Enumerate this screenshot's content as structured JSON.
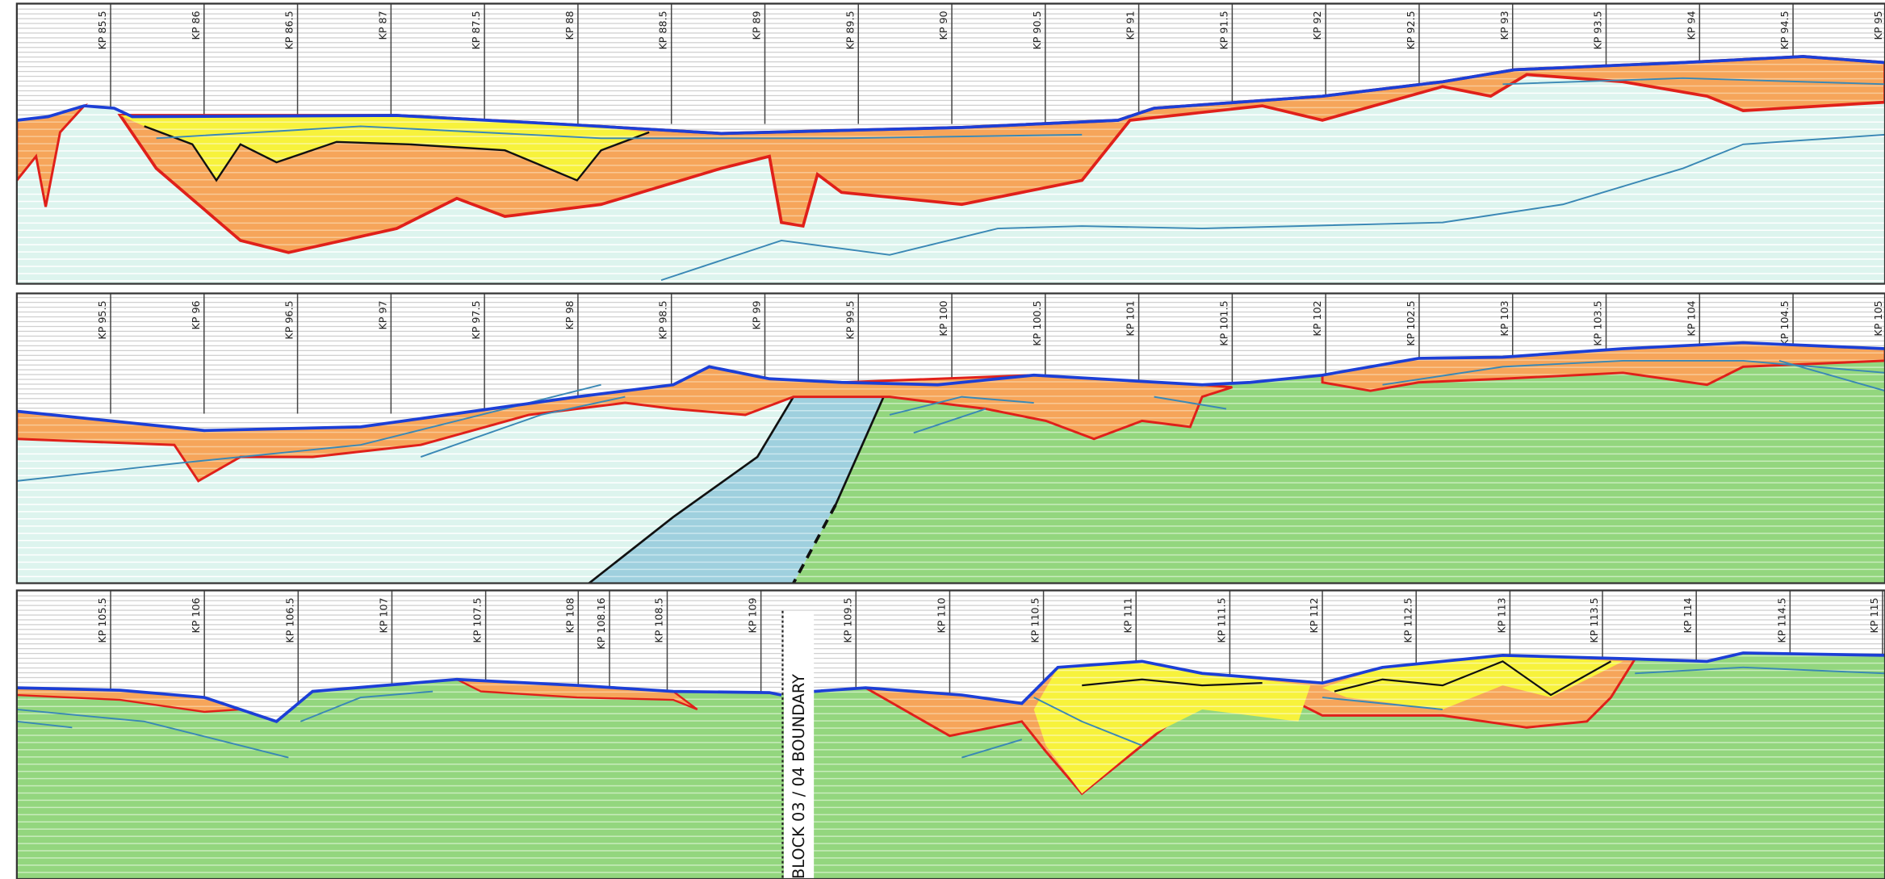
{
  "panels": [
    {
      "kp_labels": [
        "KP 85.5",
        "KP 86",
        "KP 86.5",
        "KP 87",
        "KP 87.5",
        "KP 88",
        "KP 88.5",
        "KP 89",
        "KP 89.5",
        "KP 90",
        "KP 90.5",
        "KP 91",
        "KP 91.5",
        "KP 92",
        "KP 92.5",
        "KP 93",
        "KP 93.5",
        "KP 94",
        "KP 94.5",
        "KP 95"
      ]
    },
    {
      "kp_labels": [
        "KP 95.5",
        "KP 96",
        "KP 96.5",
        "KP 97",
        "KP 97.5",
        "KP 98",
        "KP 98.5",
        "KP 99",
        "KP 99.5",
        "KP 100",
        "KP 100.5",
        "KP 101",
        "KP 101.5",
        "KP 102",
        "KP 102.5",
        "KP 103",
        "KP 103.5",
        "KP 104",
        "KP 104.5",
        "KP 105"
      ]
    },
    {
      "kp_labels": [
        "KP 105.5",
        "KP 106",
        "KP 106.5",
        "KP 107",
        "KP 107.5",
        "KP 108",
        "KP 108.16",
        "KP 108.5",
        "KP 109",
        "KP 109.5",
        "KP 110",
        "KP 110.5",
        "KP 111",
        "KP 111.5",
        "KP 112",
        "KP 112.5",
        "KP 113",
        "KP 113.5",
        "KP 114",
        "KP 114.5",
        "KP 115"
      ]
    }
  ],
  "boundary_label": "BLOCK 03 / 04 BOUNDARY"
}
